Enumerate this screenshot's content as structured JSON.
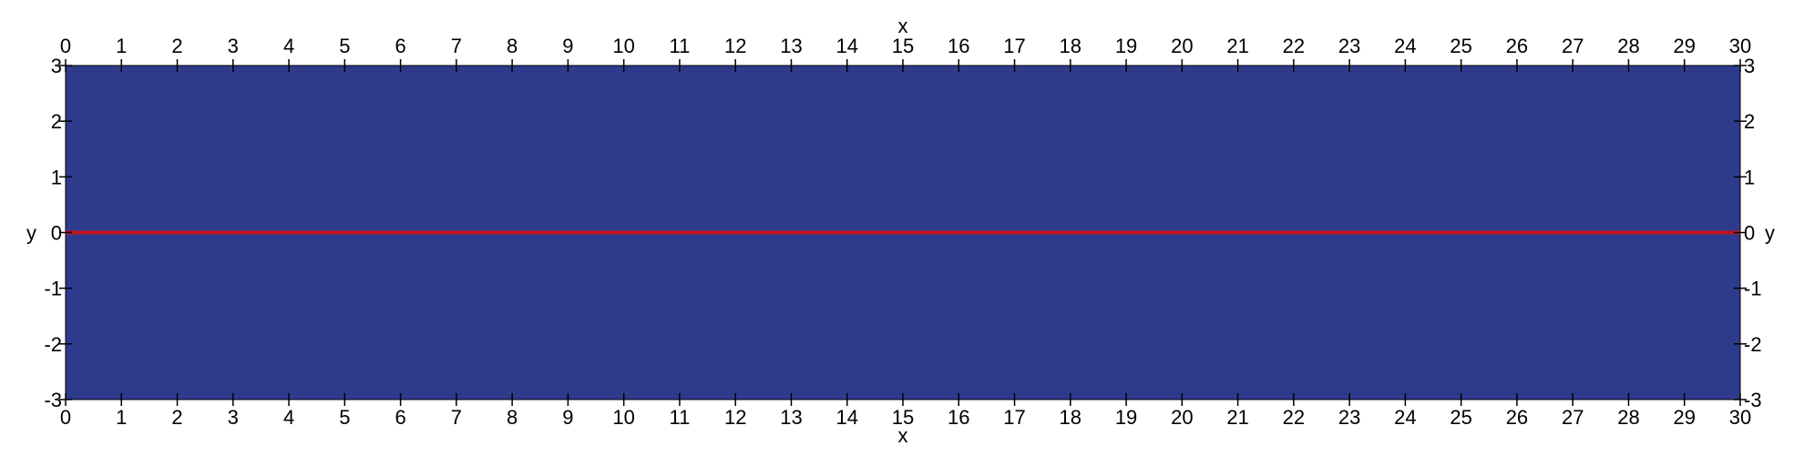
{
  "chart_data": {
    "type": "heatmap",
    "title": "",
    "xlabel": "x",
    "ylabel": "y",
    "xlim": [
      0,
      30
    ],
    "ylim": [
      -3,
      3
    ],
    "x_ticks": [
      0,
      1,
      2,
      3,
      4,
      5,
      6,
      7,
      8,
      9,
      10,
      11,
      12,
      13,
      14,
      15,
      16,
      17,
      18,
      19,
      20,
      21,
      22,
      23,
      24,
      25,
      26,
      27,
      28,
      29,
      30
    ],
    "y_ticks": [
      -3,
      -2,
      -1,
      0,
      1,
      2,
      3
    ],
    "x_tick_labels": [
      "0",
      "1",
      "2",
      "3",
      "4",
      "5",
      "6",
      "7",
      "8",
      "9",
      "10",
      "11",
      "12",
      "13",
      "14",
      "15",
      "16",
      "17",
      "18",
      "19",
      "20",
      "21",
      "22",
      "23",
      "24",
      "25",
      "26",
      "27",
      "28",
      "29",
      "30"
    ],
    "y_tick_labels": [
      "-3",
      "-2",
      "-1",
      "0",
      "1",
      "2",
      "3"
    ],
    "axes_on": [
      "top",
      "bottom",
      "left",
      "right"
    ],
    "grid": false,
    "legend": "none",
    "fill_color": "#2e3b8d",
    "line_color": "#c1121f",
    "lines": [
      {
        "x": [
          0,
          30
        ],
        "y": [
          0,
          0
        ]
      }
    ]
  }
}
